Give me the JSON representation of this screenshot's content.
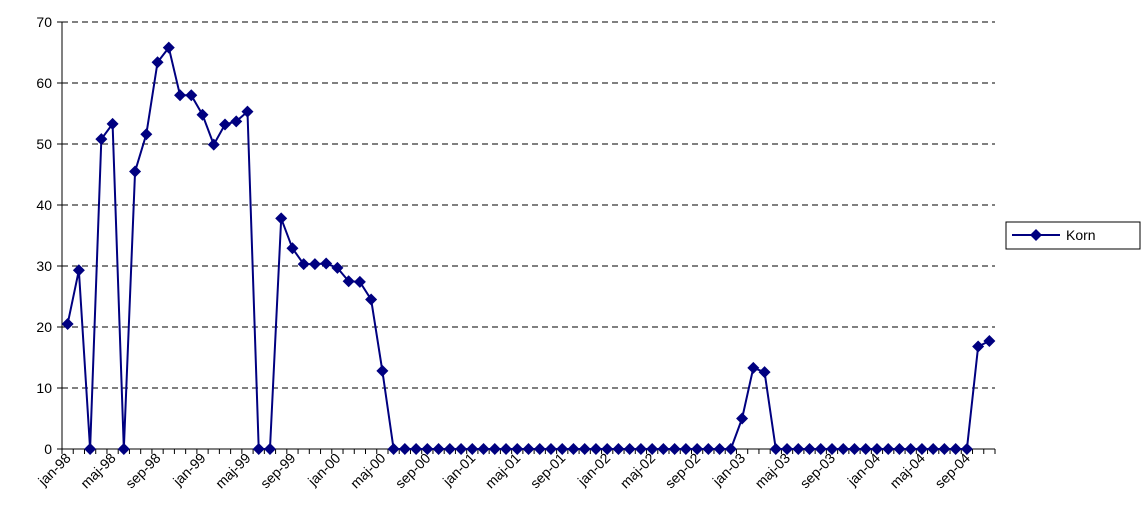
{
  "chart_data": {
    "type": "line",
    "title": "",
    "xlabel": "",
    "ylabel": "",
    "ylim": [
      0,
      70
    ],
    "yticks": [
      0,
      10,
      20,
      30,
      40,
      50,
      60,
      70
    ],
    "grid": "horizontal-dashed",
    "legend_position": "right",
    "x_tick_labels": [
      "jan-98",
      "maj-98",
      "sep-98",
      "jan-99",
      "maj-99",
      "sep-99",
      "jan-00",
      "maj-00",
      "sep-00",
      "jan-01",
      "maj-01",
      "sep-01",
      "jan-02",
      "maj-02",
      "sep-02",
      "jan-03",
      "maj-03",
      "sep-03",
      "jan-04",
      "maj-04",
      "sep-04"
    ],
    "series": [
      {
        "name": "Korn",
        "color": "#000080",
        "marker": "diamond",
        "values": [
          20.5,
          29.3,
          0,
          50.8,
          53.3,
          0,
          45.5,
          51.6,
          63.4,
          65.8,
          58.0,
          58.0,
          54.8,
          49.9,
          53.2,
          53.7,
          55.3,
          0,
          0,
          37.8,
          32.9,
          30.3,
          30.3,
          30.4,
          29.7,
          27.5,
          27.4,
          24.5,
          12.8,
          0,
          0,
          0,
          0,
          0,
          0,
          0,
          0,
          0,
          0,
          0,
          0,
          0,
          0,
          0,
          0,
          0,
          0,
          0,
          0,
          0,
          0,
          0,
          0,
          0,
          0,
          0,
          0,
          0,
          0,
          0,
          5.0,
          13.3,
          12.6,
          0,
          0,
          0,
          0,
          0,
          0,
          0,
          0,
          0,
          0,
          0,
          0,
          0,
          0,
          0,
          0,
          0,
          0,
          16.8,
          17.7
        ]
      }
    ]
  }
}
